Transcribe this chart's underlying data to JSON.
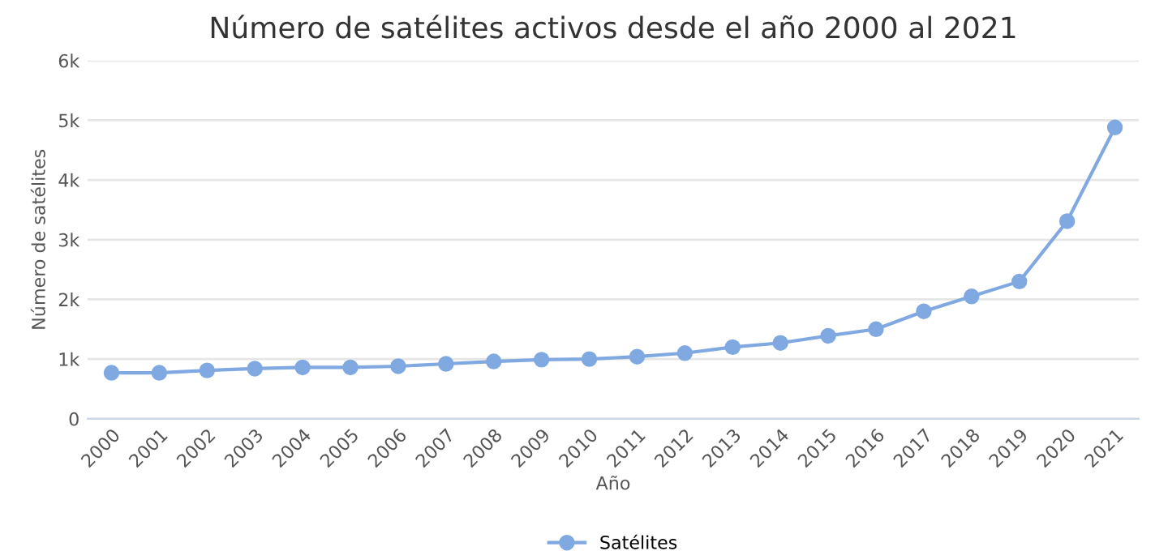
{
  "chart_data": {
    "type": "line",
    "title": "Número de satélites activos desde el año 2000 al 2021",
    "xlabel": "Año",
    "ylabel": "Número de satélites",
    "categories": [
      "2000",
      "2001",
      "2002",
      "2003",
      "2004",
      "2005",
      "2006",
      "2007",
      "2008",
      "2009",
      "2010",
      "2011",
      "2012",
      "2013",
      "2014",
      "2015",
      "2016",
      "2017",
      "2018",
      "2019",
      "2020",
      "2021"
    ],
    "series": [
      {
        "name": "Satélites",
        "color": "#7fa9e0",
        "values": [
          770,
          770,
          810,
          840,
          860,
          860,
          880,
          920,
          960,
          990,
          1000,
          1040,
          1100,
          1200,
          1270,
          1390,
          1500,
          1800,
          2050,
          2300,
          3310,
          4880
        ]
      }
    ],
    "ylim": [
      0,
      6000
    ],
    "yticks": [
      0,
      {
        "value": 1000,
        "label": "1k"
      },
      {
        "value": 2000,
        "label": "2k"
      },
      {
        "value": 3000,
        "label": "3k"
      },
      {
        "value": 4000,
        "label": "4k"
      },
      {
        "value": 5000,
        "label": "5k"
      },
      {
        "value": 6000,
        "label": "6k"
      }
    ],
    "grid": "y",
    "legend": "bottom",
    "marker": "circle",
    "line_style": "solid"
  }
}
